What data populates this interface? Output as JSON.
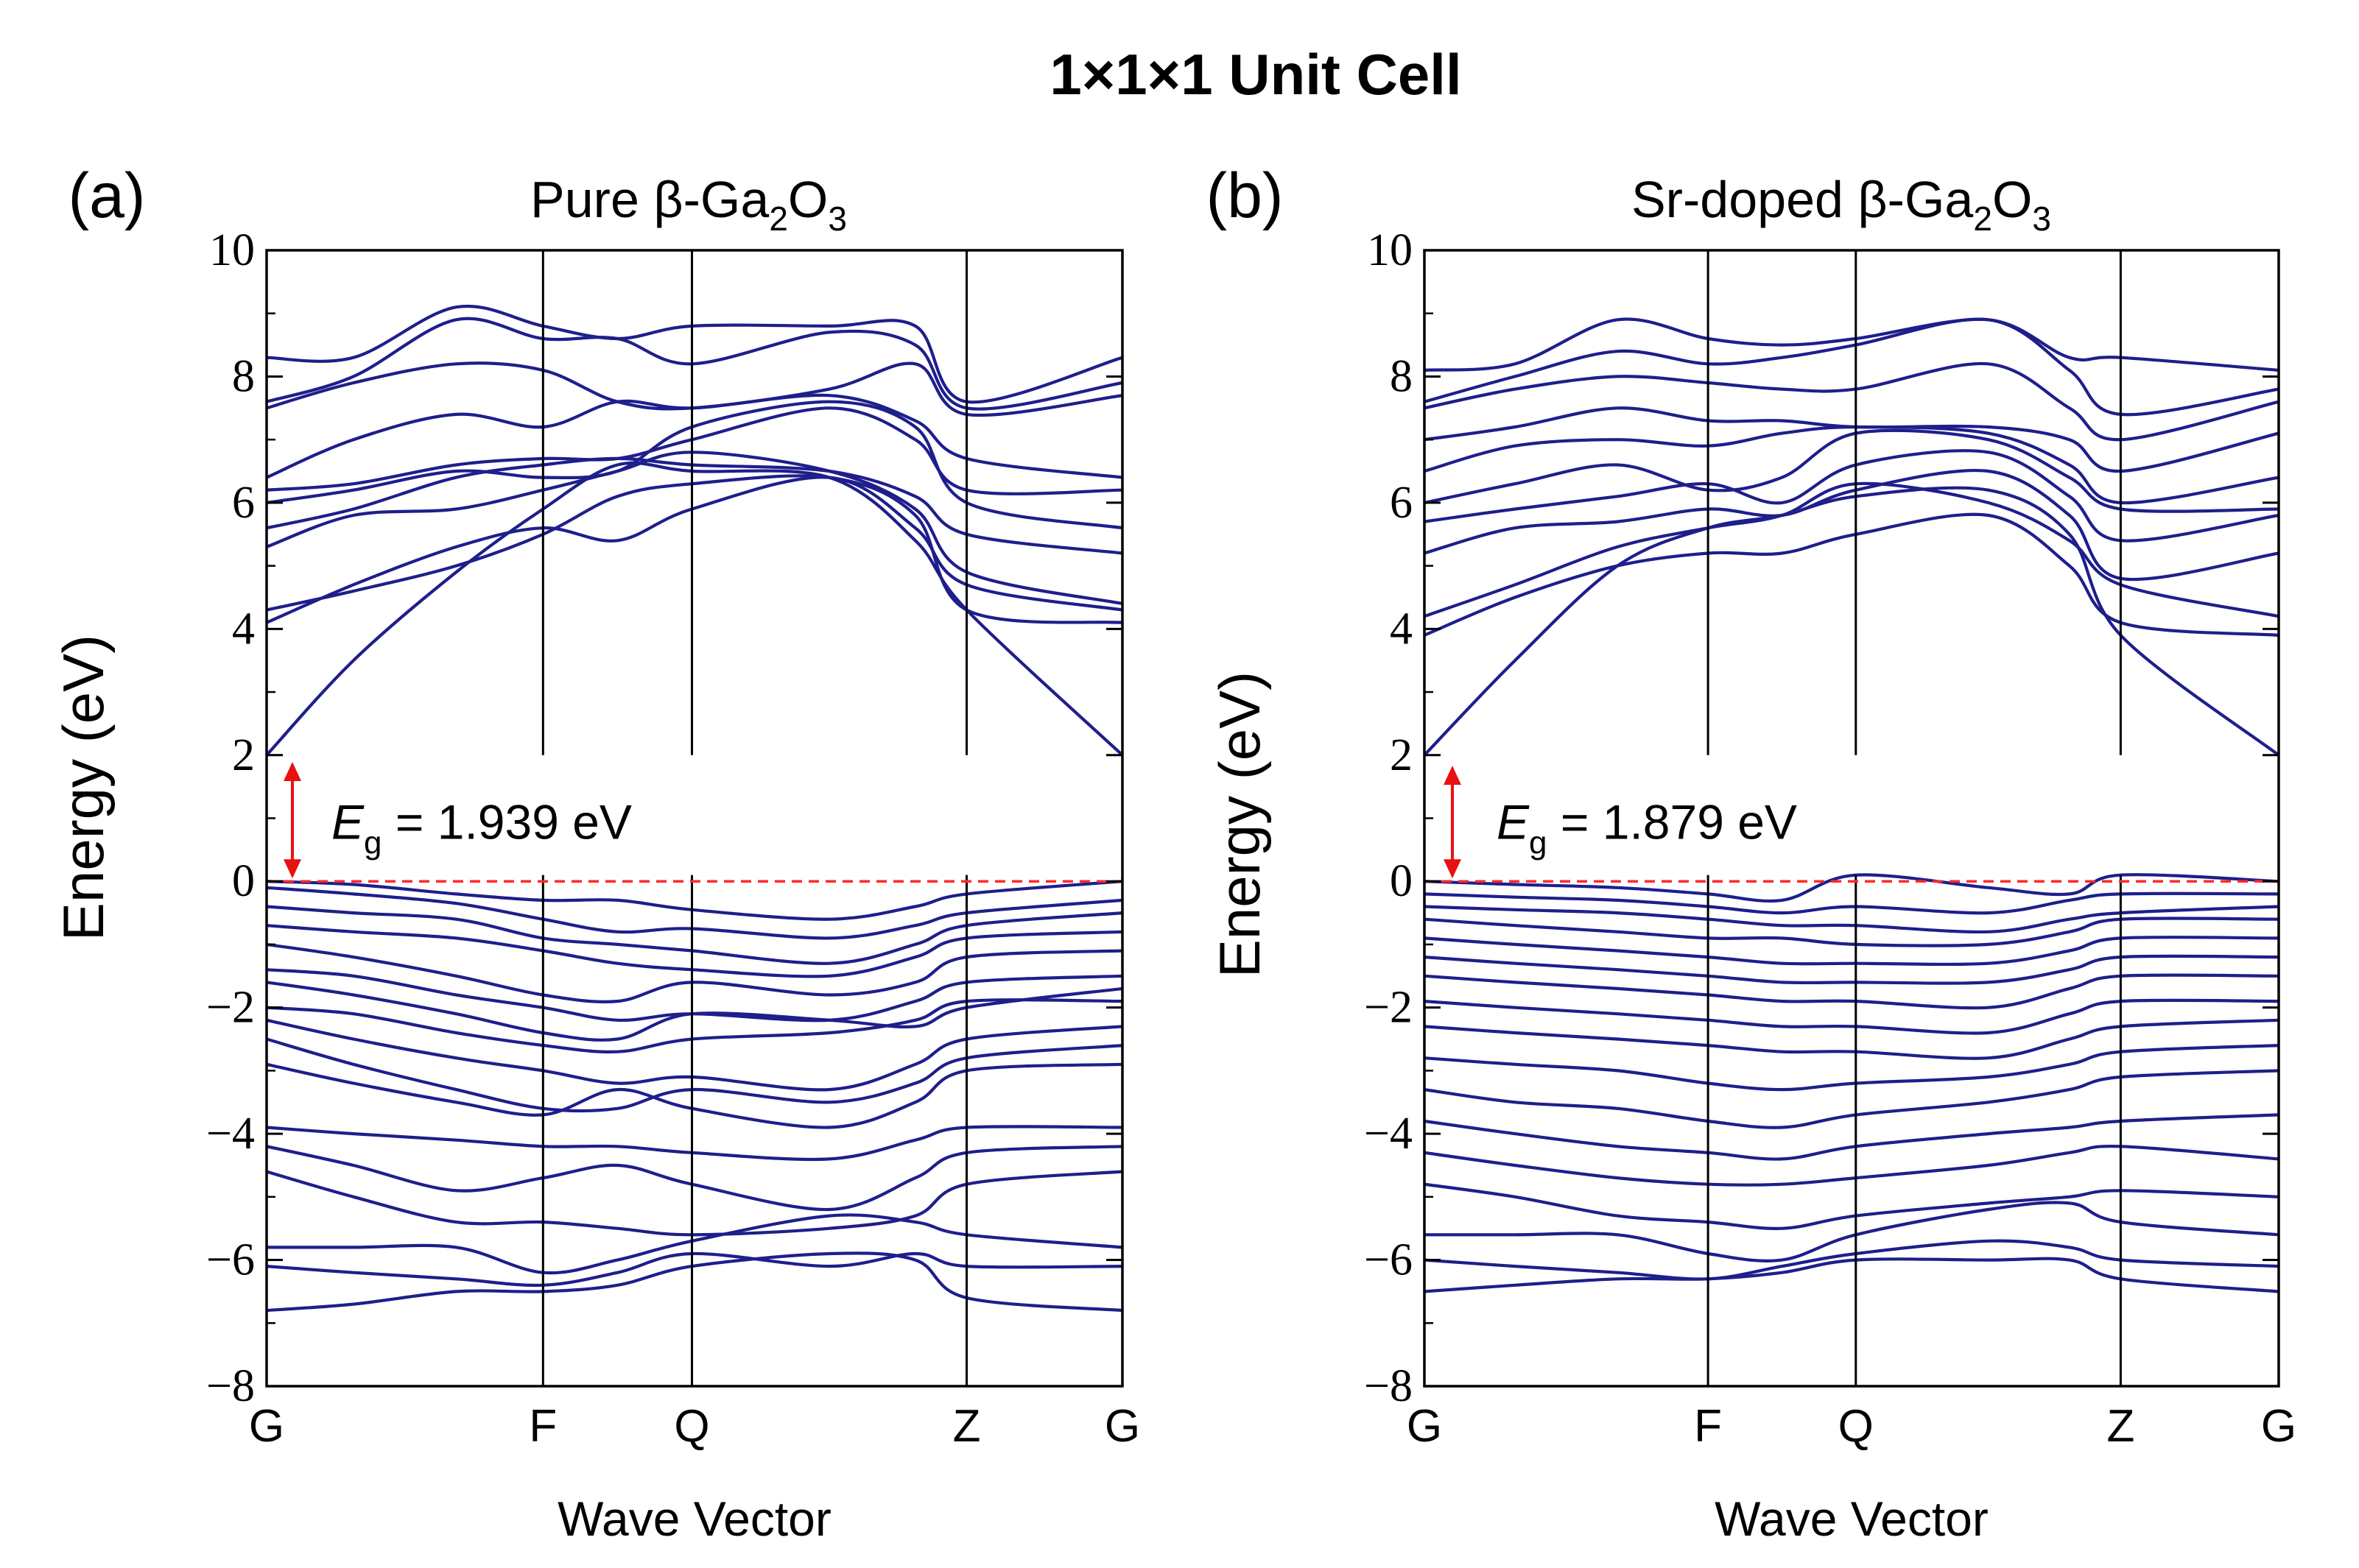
{
  "figure": {
    "title": "1×1×1 Unit Cell",
    "colors": {
      "band": "#1e1e8c",
      "fermi": "#ff2a2a",
      "gap_arrow": "#e81010",
      "axis": "#000000"
    }
  },
  "chart_data": [
    {
      "type": "line",
      "panel_label": "(a)",
      "title": {
        "prefix": "Pure β-Ga",
        "sub1": "2",
        "mid": "O",
        "sub2": "3"
      },
      "xlabel": "Wave Vector",
      "ylabel": "Energy (eV)",
      "ylim": [
        -8,
        10
      ],
      "yticks": [
        -8,
        -6,
        -4,
        -2,
        0,
        2,
        4,
        6,
        8,
        10
      ],
      "ytick_labels": [
        "−8",
        "−6",
        "−4",
        "−2",
        "0",
        "2",
        "4",
        "6",
        "8",
        "10"
      ],
      "kpoints": [
        {
          "label": "G",
          "x": 0
        },
        {
          "label": "F",
          "x": 0.323
        },
        {
          "label": "Q",
          "x": 0.497
        },
        {
          "label": "Z",
          "x": 0.818
        },
        {
          "label": "G",
          "x": 1
        }
      ],
      "fermi_level": 0,
      "band_gap": {
        "e_symbol": "E",
        "e_sub": "g",
        "value_text": " = 1.939 eV",
        "value": 1.939
      },
      "conduction_bands": [
        [
          2.0,
          3.5,
          4.9,
          5.9,
          6.6,
          6.5,
          6.4,
          5.4,
          4.3,
          2.0
        ],
        [
          4.1,
          4.7,
          5.3,
          5.6,
          5.4,
          5.9,
          6.4,
          5.6,
          4.7,
          4.3
        ],
        [
          4.3,
          4.6,
          5.0,
          5.5,
          6.1,
          6.3,
          6.4,
          5.8,
          4.3,
          4.1
        ],
        [
          5.3,
          5.8,
          5.9,
          6.2,
          6.5,
          6.8,
          6.5,
          5.9,
          4.9,
          4.4
        ],
        [
          5.6,
          5.9,
          6.4,
          6.6,
          6.7,
          6.6,
          6.5,
          6.1,
          5.5,
          5.2
        ],
        [
          6.0,
          6.2,
          6.5,
          6.4,
          6.5,
          7.2,
          7.6,
          7.2,
          6.0,
          5.6
        ],
        [
          6.2,
          6.3,
          6.6,
          6.7,
          6.7,
          7.0,
          7.5,
          7.0,
          6.2,
          6.2
        ],
        [
          6.4,
          7.0,
          7.4,
          7.2,
          7.6,
          7.5,
          7.7,
          7.3,
          6.7,
          6.4
        ],
        [
          7.5,
          7.9,
          8.2,
          8.1,
          7.6,
          7.5,
          7.8,
          8.2,
          7.4,
          7.7
        ],
        [
          7.6,
          8.0,
          8.9,
          8.6,
          8.6,
          8.2,
          8.7,
          8.5,
          7.5,
          7.9
        ],
        [
          8.3,
          8.3,
          9.1,
          8.8,
          8.6,
          8.8,
          8.8,
          8.8,
          7.6,
          8.3
        ]
      ],
      "valence_bands": [
        [
          0.0,
          -0.05,
          -0.2,
          -0.3,
          -0.3,
          -0.45,
          -0.6,
          -0.4,
          -0.2,
          0.0
        ],
        [
          -0.1,
          -0.2,
          -0.35,
          -0.6,
          -0.8,
          -0.75,
          -0.9,
          -0.7,
          -0.5,
          -0.3
        ],
        [
          -0.4,
          -0.5,
          -0.6,
          -0.9,
          -1.0,
          -1.1,
          -1.3,
          -1.0,
          -0.7,
          -0.5
        ],
        [
          -0.7,
          -0.8,
          -0.9,
          -1.1,
          -1.3,
          -1.4,
          -1.5,
          -1.2,
          -0.9,
          -0.8
        ],
        [
          -1.0,
          -1.2,
          -1.5,
          -1.8,
          -1.9,
          -1.6,
          -1.8,
          -1.6,
          -1.2,
          -1.1
        ],
        [
          -1.4,
          -1.5,
          -1.8,
          -2.0,
          -2.2,
          -2.1,
          -2.2,
          -1.9,
          -1.6,
          -1.5
        ],
        [
          -1.6,
          -1.8,
          -2.1,
          -2.4,
          -2.5,
          -2.1,
          -2.2,
          -2.3,
          -2.0,
          -1.7
        ],
        [
          -2.0,
          -2.1,
          -2.4,
          -2.6,
          -2.7,
          -2.5,
          -2.4,
          -2.2,
          -1.9,
          -1.9
        ],
        [
          -2.2,
          -2.5,
          -2.8,
          -3.0,
          -3.2,
          -3.1,
          -3.3,
          -2.9,
          -2.5,
          -2.3
        ],
        [
          -2.5,
          -2.9,
          -3.3,
          -3.6,
          -3.6,
          -3.3,
          -3.5,
          -3.2,
          -2.8,
          -2.6
        ],
        [
          -2.9,
          -3.2,
          -3.5,
          -3.7,
          -3.3,
          -3.6,
          -3.9,
          -3.5,
          -3.0,
          -2.9
        ],
        [
          -3.9,
          -4.0,
          -4.1,
          -4.2,
          -4.2,
          -4.3,
          -4.4,
          -4.1,
          -3.9,
          -3.9
        ],
        [
          -4.2,
          -4.5,
          -4.9,
          -4.7,
          -4.5,
          -4.8,
          -5.2,
          -4.7,
          -4.3,
          -4.2
        ],
        [
          -4.6,
          -5.0,
          -5.4,
          -5.4,
          -5.5,
          -5.6,
          -5.5,
          -5.3,
          -4.8,
          -4.6
        ],
        [
          -5.8,
          -5.8,
          -5.8,
          -6.2,
          -6.0,
          -5.7,
          -5.3,
          -5.4,
          -5.6,
          -5.8
        ],
        [
          -6.1,
          -6.2,
          -6.3,
          -6.4,
          -6.2,
          -5.9,
          -6.1,
          -5.9,
          -6.1,
          -6.1
        ],
        [
          -6.8,
          -6.7,
          -6.5,
          -6.5,
          -6.4,
          -6.1,
          -5.9,
          -6.0,
          -6.6,
          -6.8
        ]
      ]
    },
    {
      "type": "line",
      "panel_label": "(b)",
      "title": {
        "prefix": "Sr-doped β-Ga",
        "sub1": "2",
        "mid": "O",
        "sub2": "3"
      },
      "xlabel": "Wave Vector",
      "ylabel": "Energy (eV)",
      "ylim": [
        -8,
        10
      ],
      "yticks": [
        -8,
        -6,
        -4,
        -2,
        0,
        2,
        4,
        6,
        8,
        10
      ],
      "ytick_labels": [
        "−8",
        "−6",
        "−4",
        "−2",
        "0",
        "2",
        "4",
        "6",
        "8",
        "10"
      ],
      "kpoints": [
        {
          "label": "G",
          "x": 0
        },
        {
          "label": "F",
          "x": 0.332
        },
        {
          "label": "Q",
          "x": 0.505
        },
        {
          "label": "Z",
          "x": 0.815
        },
        {
          "label": "G",
          "x": 1
        }
      ],
      "fermi_level": 0,
      "band_gap": {
        "e_symbol": "E",
        "e_sub": "g",
        "value_text": " = 1.879 eV",
        "value": 1.879
      },
      "conduction_bands": [
        [
          2.0,
          3.5,
          5.0,
          5.6,
          5.8,
          6.1,
          6.2,
          5.5,
          3.9,
          2.0
        ],
        [
          3.9,
          4.5,
          5.0,
          5.2,
          5.2,
          5.5,
          5.8,
          5.0,
          4.1,
          3.9
        ],
        [
          4.2,
          4.7,
          5.3,
          5.6,
          5.8,
          6.3,
          6.0,
          5.4,
          4.7,
          4.2
        ],
        [
          5.2,
          5.6,
          5.7,
          5.9,
          5.8,
          6.2,
          6.5,
          5.8,
          4.8,
          5.2
        ],
        [
          5.7,
          5.9,
          6.1,
          6.3,
          6.0,
          6.6,
          6.8,
          6.1,
          5.4,
          5.8
        ],
        [
          6.0,
          6.3,
          6.6,
          6.2,
          6.4,
          7.1,
          7.0,
          6.4,
          5.9,
          5.9
        ],
        [
          6.5,
          6.9,
          7.0,
          6.9,
          7.1,
          7.2,
          7.1,
          6.6,
          6.0,
          6.4
        ],
        [
          7.0,
          7.2,
          7.5,
          7.3,
          7.3,
          7.2,
          7.2,
          7.0,
          6.5,
          7.1
        ],
        [
          7.5,
          7.8,
          8.0,
          7.9,
          7.8,
          7.8,
          8.2,
          7.5,
          7.0,
          7.6
        ],
        [
          7.6,
          8.0,
          8.4,
          8.2,
          8.3,
          8.5,
          8.9,
          8.1,
          7.4,
          7.8
        ],
        [
          8.1,
          8.2,
          8.9,
          8.6,
          8.5,
          8.6,
          8.9,
          8.3,
          8.3,
          8.1
        ]
      ],
      "valence_bands": [
        [
          0.0,
          -0.05,
          -0.1,
          -0.2,
          -0.3,
          0.1,
          -0.1,
          -0.2,
          0.1,
          0.0
        ],
        [
          -0.2,
          -0.25,
          -0.3,
          -0.4,
          -0.5,
          -0.4,
          -0.5,
          -0.3,
          -0.2,
          -0.2
        ],
        [
          -0.4,
          -0.45,
          -0.5,
          -0.6,
          -0.7,
          -0.7,
          -0.8,
          -0.6,
          -0.5,
          -0.4
        ],
        [
          -0.6,
          -0.7,
          -0.8,
          -0.9,
          -0.9,
          -1.0,
          -1.0,
          -0.8,
          -0.6,
          -0.6
        ],
        [
          -0.9,
          -1.0,
          -1.1,
          -1.2,
          -1.3,
          -1.3,
          -1.3,
          -1.1,
          -0.9,
          -0.9
        ],
        [
          -1.2,
          -1.3,
          -1.4,
          -1.5,
          -1.6,
          -1.6,
          -1.6,
          -1.4,
          -1.2,
          -1.2
        ],
        [
          -1.5,
          -1.6,
          -1.7,
          -1.8,
          -1.9,
          -1.9,
          -2.0,
          -1.7,
          -1.5,
          -1.5
        ],
        [
          -1.9,
          -2.0,
          -2.1,
          -2.2,
          -2.3,
          -2.3,
          -2.4,
          -2.1,
          -1.9,
          -1.9
        ],
        [
          -2.3,
          -2.4,
          -2.5,
          -2.6,
          -2.7,
          -2.7,
          -2.8,
          -2.5,
          -2.3,
          -2.2
        ],
        [
          -2.8,
          -2.9,
          -3.0,
          -3.2,
          -3.3,
          -3.2,
          -3.1,
          -2.9,
          -2.7,
          -2.6
        ],
        [
          -3.3,
          -3.5,
          -3.6,
          -3.8,
          -3.9,
          -3.7,
          -3.5,
          -3.3,
          -3.1,
          -3.0
        ],
        [
          -3.8,
          -4.0,
          -4.2,
          -4.3,
          -4.4,
          -4.2,
          -4.0,
          -3.9,
          -3.8,
          -3.7
        ],
        [
          -4.3,
          -4.5,
          -4.7,
          -4.8,
          -4.8,
          -4.7,
          -4.5,
          -4.3,
          -4.2,
          -4.4
        ],
        [
          -4.8,
          -5.0,
          -5.3,
          -5.4,
          -5.5,
          -5.3,
          -5.1,
          -5.0,
          -4.9,
          -5.0
        ],
        [
          -5.6,
          -5.6,
          -5.6,
          -5.9,
          -6.0,
          -5.6,
          -5.2,
          -5.1,
          -5.4,
          -5.6
        ],
        [
          -6.0,
          -6.1,
          -6.2,
          -6.3,
          -6.1,
          -5.9,
          -5.7,
          -5.8,
          -6.0,
          -6.1
        ],
        [
          -6.5,
          -6.4,
          -6.3,
          -6.3,
          -6.2,
          -6.0,
          -6.0,
          -6.0,
          -6.3,
          -6.5
        ]
      ]
    }
  ]
}
